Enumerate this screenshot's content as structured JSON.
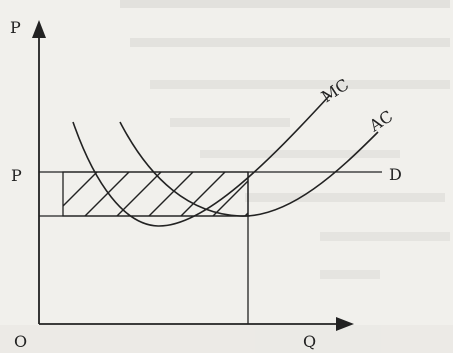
{
  "diagram": {
    "y_axis_label": "P",
    "x_axis_label": "Q",
    "origin_label": "O",
    "price_label": "P",
    "curves": {
      "mc": "MC",
      "ac": "AC",
      "demand": "D"
    }
  },
  "colors": {
    "ink": "#222222",
    "paper": "#f1f0ec",
    "bleed_through": "#c9c8c4"
  }
}
